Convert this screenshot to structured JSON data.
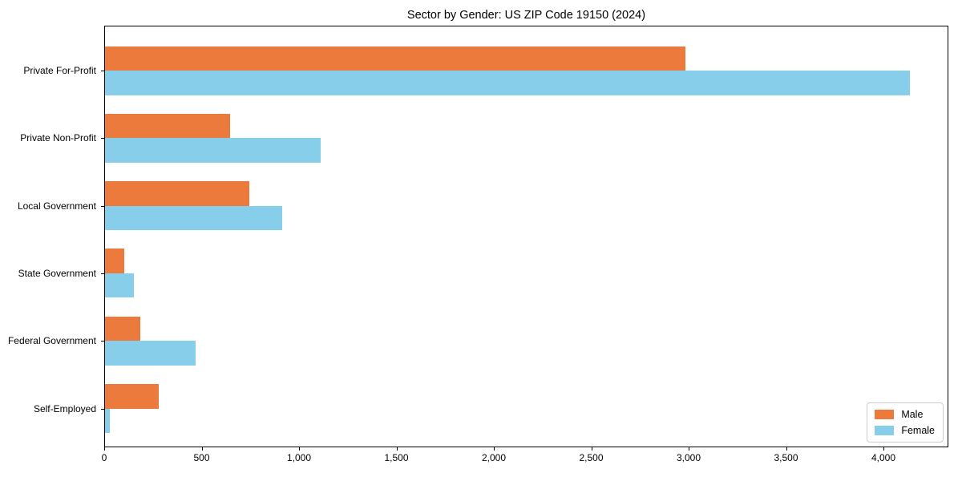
{
  "title": "Sector by Gender: US ZIP Code 19150 (2024)",
  "chart_data": {
    "type": "bar",
    "orientation": "horizontal",
    "title": "Sector by Gender: US ZIP Code 19150 (2024)",
    "xlabel": "",
    "ylabel": "",
    "categories": [
      "Private For-Profit",
      "Private Non-Profit",
      "Local Government",
      "State Government",
      "Federal Government",
      "Self-Employed"
    ],
    "series": [
      {
        "name": "Male",
        "color": "#ec7a3d",
        "values": [
          2980,
          640,
          740,
          100,
          180,
          275
        ]
      },
      {
        "name": "Female",
        "color": "#87ceeb",
        "values": [
          4130,
          1105,
          910,
          150,
          465,
          25
        ]
      }
    ],
    "xlim": [
      0,
      4325
    ],
    "x_ticks": [
      0,
      500,
      1000,
      1500,
      2000,
      2500,
      3000,
      3500,
      4000
    ],
    "x_tick_labels": [
      "0",
      "500",
      "1,000",
      "1,500",
      "2,000",
      "2,500",
      "3,000",
      "3,500",
      "4,000"
    ],
    "grid": false,
    "legend_position": "lower right"
  },
  "legend": {
    "items": [
      {
        "label": "Male",
        "color": "#ec7a3d"
      },
      {
        "label": "Female",
        "color": "#87ceeb"
      }
    ]
  }
}
